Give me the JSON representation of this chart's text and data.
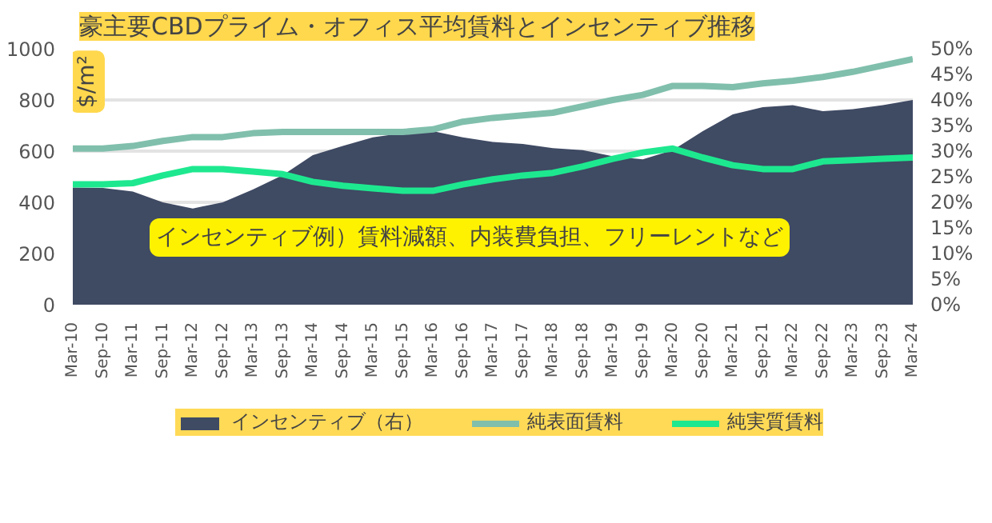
{
  "chart_data": {
    "type": "line",
    "title": "豪主要CBDプライム・オフィス平均賃料とインセンティブ推移",
    "ylabel": "$/m²",
    "categories": [
      "Mar-10",
      "Sep-10",
      "Mar-11",
      "Sep-11",
      "Mar-12",
      "Sep-12",
      "Mar-13",
      "Sep-13",
      "Mar-14",
      "Sep-14",
      "Mar-15",
      "Sep-15",
      "Mar-16",
      "Sep-16",
      "Mar-17",
      "Sep-17",
      "Mar-18",
      "Sep-18",
      "Mar-19",
      "Sep-19",
      "Mar-20",
      "Sep-20",
      "Mar-21",
      "Sep-21",
      "Mar-22",
      "Sep-22",
      "Mar-23",
      "Sep-23",
      "Mar-24"
    ],
    "series": [
      {
        "name": "インセンティブ（右）",
        "type": "area",
        "axis": "y2",
        "color": "#3f4a63",
        "values": [
          22.9,
          22.8,
          22.1,
          20.0,
          18.8,
          20.0,
          22.5,
          25.3,
          29.2,
          31.0,
          32.7,
          33.5,
          33.9,
          32.7,
          31.8,
          31.4,
          30.6,
          30.2,
          29.0,
          28.4,
          30.2,
          33.9,
          37.2,
          38.6,
          39.0,
          37.8,
          38.2,
          39.0,
          40.0
        ]
      },
      {
        "name": "純表面賃料",
        "type": "line",
        "color": "#80bfac",
        "values": [
          610,
          610,
          620,
          640,
          655,
          655,
          670,
          675,
          675,
          675,
          675,
          675,
          685,
          715,
          730,
          740,
          750,
          775,
          800,
          820,
          855,
          855,
          850,
          865,
          875,
          890,
          910,
          935,
          960
        ]
      },
      {
        "name": "純実質賃料",
        "type": "line",
        "color": "#1ee88f",
        "values": [
          470,
          470,
          475,
          505,
          530,
          530,
          520,
          510,
          480,
          465,
          455,
          445,
          445,
          470,
          490,
          505,
          515,
          540,
          570,
          595,
          610,
          575,
          545,
          530,
          530,
          560,
          565,
          570,
          575
        ]
      }
    ],
    "ylim": [
      0,
      1000
    ],
    "yticks": [
      0,
      200,
      400,
      600,
      800,
      1000
    ],
    "y2lim": [
      0,
      50
    ],
    "y2ticks": [
      {
        "value": 0,
        "label": "0%"
      },
      {
        "value": 5,
        "label": "5%"
      },
      {
        "value": 10,
        "label": "10%"
      },
      {
        "value": 15,
        "label": "15%"
      },
      {
        "value": 20,
        "label": "20%"
      },
      {
        "value": 25,
        "label": "25%"
      },
      {
        "value": 30,
        "label": "30%"
      },
      {
        "value": 35,
        "label": "35%"
      },
      {
        "value": 40,
        "label": "40%"
      },
      {
        "value": 45,
        "label": "45%"
      },
      {
        "value": 50,
        "label": "50%"
      }
    ],
    "annotations": [
      "インセンティブ例）賃料減額、内装費負担、フリーレントなど"
    ],
    "grid": "y",
    "legend": "bottom",
    "marker": "none",
    "line_style": "solid"
  }
}
